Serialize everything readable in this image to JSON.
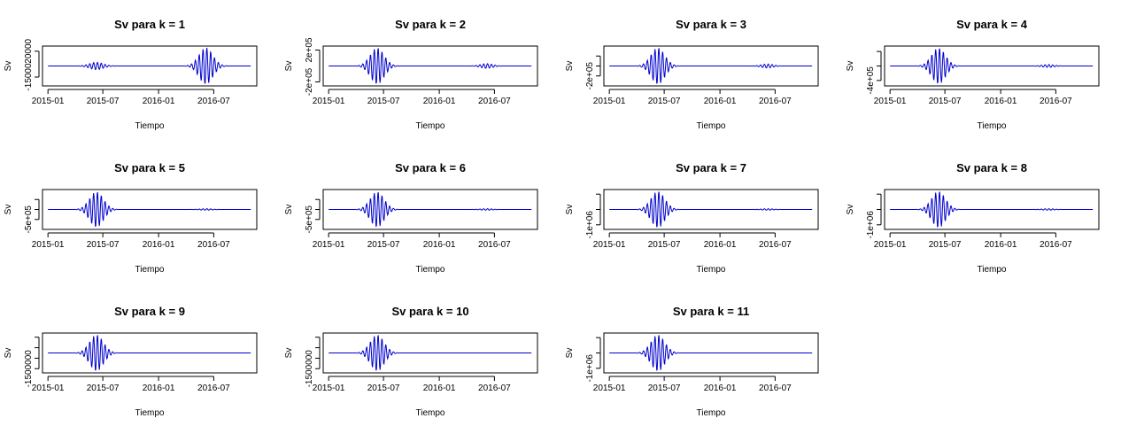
{
  "figure": {
    "layout": "3 rows x 4 columns (11 panels)",
    "line_color": "#0000cc"
  },
  "chart_data": [
    {
      "type": "line",
      "title": "Sv para k = 1",
      "xlabel": "Tiempo",
      "ylabel": "Sv",
      "x_ticks": [
        "2015-01",
        "2015-07",
        "2016-01",
        "2016-07"
      ],
      "y_ticks": [
        {
          "v": 20000,
          "label": "20000"
        },
        {
          "v": -15000,
          "label": "-15000"
        }
      ],
      "ylim": [
        -27000,
        27000
      ],
      "bursts": [
        {
          "date": "2015-06-10",
          "amp": 5000,
          "width": 25
        },
        {
          "date": "2016-06-05",
          "amp": 25000,
          "width": 25
        }
      ]
    },
    {
      "type": "line",
      "title": "Sv para k = 2",
      "xlabel": "Tiempo",
      "ylabel": "Sv",
      "x_ticks": [
        "2015-01",
        "2015-07",
        "2016-01",
        "2016-07"
      ],
      "y_ticks": [
        {
          "v": 200000,
          "label": "2e+05"
        },
        {
          "v": -200000,
          "label": "-2e+05"
        }
      ],
      "ylim": [
        -250000,
        250000
      ],
      "bursts": [
        {
          "date": "2015-06-10",
          "amp": 230000,
          "width": 25
        },
        {
          "date": "2016-06-05",
          "amp": 30000,
          "width": 22
        }
      ]
    },
    {
      "type": "line",
      "title": "Sv para k = 3",
      "xlabel": "Tiempo",
      "ylabel": "Sv",
      "x_ticks": [
        "2015-01",
        "2015-07",
        "2016-01",
        "2016-07"
      ],
      "y_ticks": [
        {
          "v": 200000,
          "label": ""
        },
        {
          "v": 0,
          "label": ""
        },
        {
          "v": -200000,
          "label": "-2e+05"
        }
      ],
      "ylim": [
        -400000,
        400000
      ],
      "bursts": [
        {
          "date": "2015-06-10",
          "amp": 370000,
          "width": 25
        },
        {
          "date": "2016-06-05",
          "amp": 40000,
          "width": 22
        }
      ]
    },
    {
      "type": "line",
      "title": "Sv para k = 4",
      "xlabel": "Tiempo",
      "ylabel": "Sv",
      "x_ticks": [
        "2015-01",
        "2015-07",
        "2016-01",
        "2016-07"
      ],
      "y_ticks": [
        {
          "v": 400000,
          "label": ""
        },
        {
          "v": 0,
          "label": ""
        },
        {
          "v": -400000,
          "label": "-4e+05"
        }
      ],
      "ylim": [
        -550000,
        550000
      ],
      "bursts": [
        {
          "date": "2015-06-10",
          "amp": 500000,
          "width": 25
        },
        {
          "date": "2016-06-05",
          "amp": 40000,
          "width": 22
        }
      ]
    },
    {
      "type": "line",
      "title": "Sv para k = 5",
      "xlabel": "Tiempo",
      "ylabel": "Sv",
      "x_ticks": [
        "2015-01",
        "2015-07",
        "2016-01",
        "2016-07"
      ],
      "y_ticks": [
        {
          "v": 500000,
          "label": ""
        },
        {
          "v": 0,
          "label": ""
        },
        {
          "v": -500000,
          "label": "-5e+05"
        }
      ],
      "ylim": [
        -1000000,
        1000000
      ],
      "bursts": [
        {
          "date": "2015-06-10",
          "amp": 900000,
          "width": 25
        },
        {
          "date": "2016-06-05",
          "amp": 40000,
          "width": 22
        }
      ]
    },
    {
      "type": "line",
      "title": "Sv para k = 6",
      "xlabel": "Tiempo",
      "ylabel": "Sv",
      "x_ticks": [
        "2015-01",
        "2015-07",
        "2016-01",
        "2016-07"
      ],
      "y_ticks": [
        {
          "v": 500000,
          "label": ""
        },
        {
          "v": 0,
          "label": ""
        },
        {
          "v": -500000,
          "label": "-5e+05"
        }
      ],
      "ylim": [
        -1000000,
        1000000
      ],
      "bursts": [
        {
          "date": "2015-06-10",
          "amp": 900000,
          "width": 25
        },
        {
          "date": "2016-06-05",
          "amp": 40000,
          "width": 22
        }
      ]
    },
    {
      "type": "line",
      "title": "Sv para k = 7",
      "xlabel": "Tiempo",
      "ylabel": "Sv",
      "x_ticks": [
        "2015-01",
        "2015-07",
        "2016-01",
        "2016-07"
      ],
      "y_ticks": [
        {
          "v": 1000000,
          "label": ""
        },
        {
          "v": 0,
          "label": ""
        },
        {
          "v": -1000000,
          "label": "-1e+06"
        }
      ],
      "ylim": [
        -1300000,
        1300000
      ],
      "bursts": [
        {
          "date": "2015-06-10",
          "amp": 1200000,
          "width": 25
        },
        {
          "date": "2016-06-05",
          "amp": 50000,
          "width": 22
        }
      ]
    },
    {
      "type": "line",
      "title": "Sv para k = 8",
      "xlabel": "Tiempo",
      "ylabel": "Sv",
      "x_ticks": [
        "2015-01",
        "2015-07",
        "2016-01",
        "2016-07"
      ],
      "y_ticks": [
        {
          "v": 1000000,
          "label": ""
        },
        {
          "v": 0,
          "label": ""
        },
        {
          "v": -1000000,
          "label": "-1e+06"
        }
      ],
      "ylim": [
        -1300000,
        1300000
      ],
      "bursts": [
        {
          "date": "2015-06-10",
          "amp": 1200000,
          "width": 25
        },
        {
          "date": "2016-06-05",
          "amp": 50000,
          "width": 22
        }
      ]
    },
    {
      "type": "line",
      "title": "Sv para k = 9",
      "xlabel": "Tiempo",
      "ylabel": "Sv",
      "x_ticks": [
        "2015-01",
        "2015-07",
        "2016-01",
        "2016-07"
      ],
      "y_ticks": [
        {
          "v": 1500000,
          "label": ""
        },
        {
          "v": 500000,
          "label": ""
        },
        {
          "v": -500000,
          "label": ""
        },
        {
          "v": -1500000,
          "label": "-1500000"
        }
      ],
      "ylim": [
        -1900000,
        1900000
      ],
      "bursts": [
        {
          "date": "2015-06-10",
          "amp": 1750000,
          "width": 25
        }
      ]
    },
    {
      "type": "line",
      "title": "Sv para k = 10",
      "xlabel": "Tiempo",
      "ylabel": "Sv",
      "x_ticks": [
        "2015-01",
        "2015-07",
        "2016-01",
        "2016-07"
      ],
      "y_ticks": [
        {
          "v": 1500000,
          "label": ""
        },
        {
          "v": 500000,
          "label": ""
        },
        {
          "v": -500000,
          "label": ""
        },
        {
          "v": -1500000,
          "label": "-1500000"
        }
      ],
      "ylim": [
        -1900000,
        1900000
      ],
      "bursts": [
        {
          "date": "2015-06-10",
          "amp": 1750000,
          "width": 25
        }
      ]
    },
    {
      "type": "line",
      "title": "Sv para k = 11",
      "xlabel": "Tiempo",
      "ylabel": "Sv",
      "x_ticks": [
        "2015-01",
        "2015-07",
        "2016-01",
        "2016-07"
      ],
      "y_ticks": [
        {
          "v": 1000000,
          "label": ""
        },
        {
          "v": 0,
          "label": ""
        },
        {
          "v": -1000000,
          "label": "-1e+06"
        }
      ],
      "ylim": [
        -1300000,
        1300000
      ],
      "bursts": [
        {
          "date": "2015-06-10",
          "amp": 1200000,
          "width": 25
        }
      ]
    }
  ]
}
